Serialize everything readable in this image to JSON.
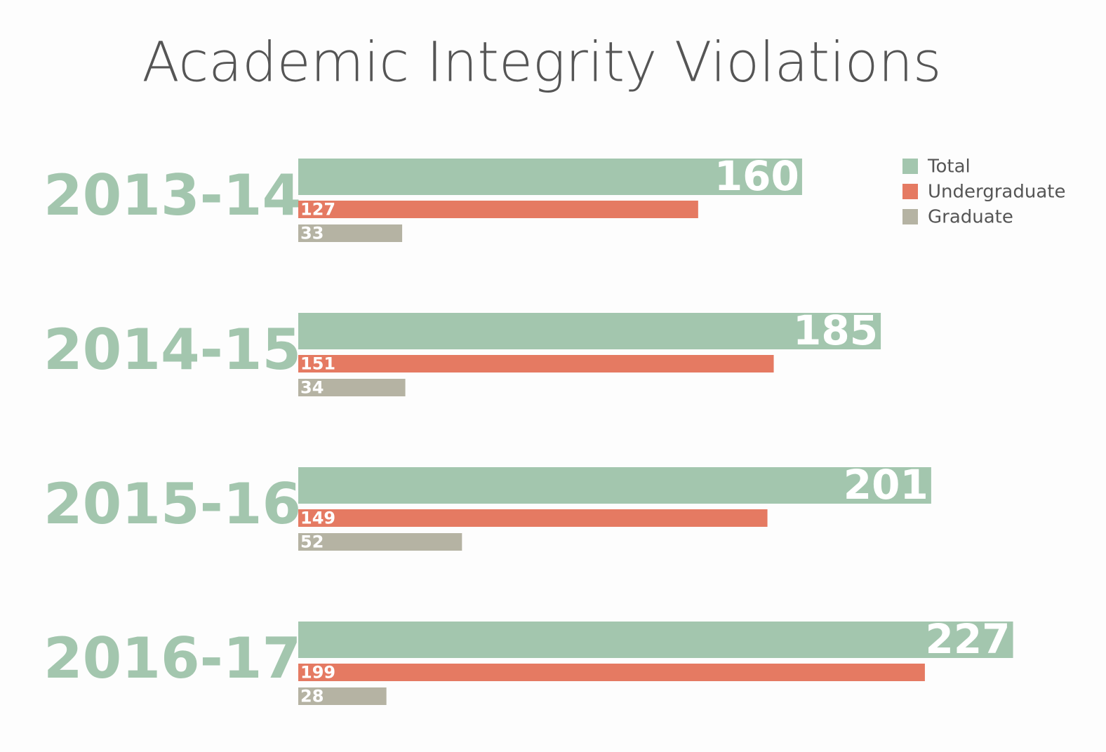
{
  "chart_data": {
    "type": "bar",
    "orientation": "horizontal",
    "title": "Academic Integrity Violations",
    "categories": [
      "2013-14",
      "2014-15",
      "2015-16",
      "2016-17"
    ],
    "series": [
      {
        "name": "Total",
        "color": "#a3c6ae",
        "values": [
          160,
          185,
          201,
          227
        ]
      },
      {
        "name": "Undergraduate",
        "color": "#e57a62",
        "values": [
          127,
          151,
          149,
          199
        ]
      },
      {
        "name": "Graduate",
        "color": "#b5b3a3",
        "values": [
          33,
          34,
          52,
          28
        ]
      }
    ],
    "legend": "top-right"
  }
}
